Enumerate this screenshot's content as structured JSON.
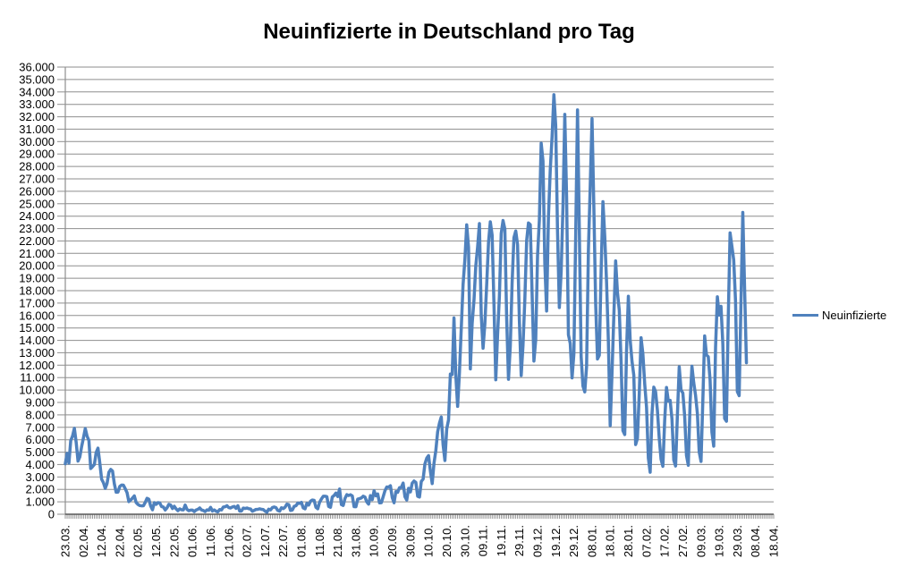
{
  "chart_data": {
    "type": "line",
    "title": "Neuinfizierte in Deutschland pro Tag",
    "legend": {
      "label": "Neuinfizierte",
      "position": "right"
    },
    "grid": "horizontal",
    "colors": {
      "line": "#4F81BD",
      "gridline": "#8E8E8E",
      "axis": "#595959",
      "comb": "#7F7F7F",
      "text": "#000000",
      "background": "#FFFFFF"
    },
    "y_axis": {
      "min": 0,
      "max": 36000,
      "step": 1000,
      "tick_labels": [
        "0",
        "1.000",
        "2.000",
        "3.000",
        "4.000",
        "5.000",
        "6.000",
        "7.000",
        "8.000",
        "9.000",
        "10.000",
        "11.000",
        "12.000",
        "13.000",
        "14.000",
        "15.000",
        "16.000",
        "17.000",
        "18.000",
        "19.000",
        "20.000",
        "21.000",
        "22.000",
        "23.000",
        "24.000",
        "25.000",
        "26.000",
        "27.000",
        "28.000",
        "29.000",
        "30.000",
        "31.000",
        "32.000",
        "33.000",
        "34.000",
        "35.000",
        "36.000"
      ]
    },
    "x_axis": {
      "n_categories": 391,
      "label_every": 10,
      "tick_labels": [
        "23.03.",
        "02.04.",
        "12.04.",
        "22.04.",
        "02.05.",
        "12.05.",
        "22.05.",
        "01.06.",
        "11.06.",
        "21.06.",
        "02.07.",
        "12.07.",
        "22.07.",
        "01.08.",
        "11.08.",
        "21.08.",
        "31.08.",
        "10.09.",
        "20.09.",
        "30.09.",
        "10.10.",
        "20.10.",
        "30.10.",
        "09.11.",
        "19.11.",
        "29.11.",
        "09.12.",
        "19.12.",
        "29.12.",
        "08.01.",
        "18.01.",
        "28.01.",
        "07.02.",
        "17.02.",
        "27.02.",
        "09.03.",
        "19.03.",
        "29.03.",
        "08.04.",
        "18.04."
      ]
    },
    "series": [
      {
        "name": "Neuinfizierte",
        "values": [
          4062,
          4900,
          4118,
          5940,
          6294,
          6922,
          5780,
          4280,
          4615,
          5453,
          6156,
          6900,
          6282,
          5936,
          3677,
          3834,
          4003,
          4974,
          5323,
          4133,
          2821,
          2537,
          2082,
          2486,
          3380,
          3609,
          3481,
          2458,
          1775,
          1785,
          2237,
          2352,
          2337,
          2055,
          1737,
          1018,
          1144,
          1304,
          1478,
          945,
          793,
          697,
          679,
          685,
          947,
          1284,
          1209,
          667,
          357,
          933,
          798,
          933,
          913,
          620,
          583,
          342,
          513,
          797,
          745,
          460,
          638,
          431,
          289,
          432,
          362,
          353,
          741,
          391,
          286,
          333,
          333,
          213,
          342,
          394,
          507,
          348,
          301,
          214,
          350,
          318,
          555,
          258,
          348,
          247,
          192,
          378,
          345,
          580,
          601,
          687,
          537,
          503,
          587,
          630,
          477,
          687,
          256,
          262,
          498,
          466,
          503,
          446,
          422,
          239,
          312,
          390,
          397,
          442,
          395,
          378,
          248,
          159,
          412,
          345,
          534,
          583,
          529,
          305,
          249,
          522,
          454,
          569,
          815,
          781,
          305,
          340,
          633,
          684,
          902,
          870,
          955,
          509,
          436,
          879,
          741,
          1045,
          1147,
          1122,
          555,
          436,
          966,
          1226,
          1445,
          1449,
          1415,
          625,
          561,
          1390,
          1510,
          1707,
          1427,
          2034,
          782,
          711,
          1278,
          1576,
          1507,
          1571,
          1479,
          610,
          601,
          1218,
          1256,
          1311,
          1453,
          1378,
          988,
          814,
          1499,
          1176,
          1892,
          1484,
          1630,
          920,
          927,
          1407,
          1901,
          2194,
          2179,
          2297,
          1345,
          922,
          1821,
          1769,
          2143,
          2153,
          2507,
          1411,
          1144,
          2089,
          1798,
          2503,
          2673,
          2563,
          1450,
          1382,
          2639,
          2828,
          4058,
          4516,
          4721,
          3483,
          2467,
          4122,
          5132,
          6638,
          7334,
          7830,
          5587,
          4325,
          6868,
          7595,
          11287,
          11242,
          15800,
          11176,
          8685,
          11409,
          14964,
          18500,
          20500,
          23300,
          21500,
          11700,
          15352,
          17214,
          19990,
          21506,
          23399,
          16017,
          13363,
          15332,
          18487,
          21866,
          23542,
          22461,
          16947,
          10824,
          14419,
          17561,
          22609,
          23648,
          22964,
          15741,
          10864,
          13554,
          18633,
          22268,
          22806,
          21695,
          15586,
          11169,
          13604,
          17270,
          22046,
          23449,
          23318,
          17767,
          12332,
          14054,
          20815,
          23679,
          29875,
          28438,
          20200,
          16362,
          23928,
          27728,
          30400,
          33777,
          31300,
          22771,
          16643,
          19528,
          24740,
          32195,
          25533,
          14455,
          13755,
          10976,
          12892,
          22459,
          32552,
          22924,
          12690,
          10315,
          9847,
          11897,
          21237,
          26391,
          31849,
          24694,
          16946,
          12497,
          12802,
          19600,
          25164,
          22368,
          18678,
          13882,
          7141,
          11369,
          15974,
          20398,
          17862,
          16417,
          12257,
          6729,
          6412,
          13198,
          17553,
          14022,
          12321,
          11192,
          5608,
          6114,
          9705,
          14211,
          12908,
          10485,
          8616,
          4535,
          3379,
          8072,
          10237,
          9860,
          8354,
          6114,
          4426,
          3856,
          7556,
          10207,
          9113,
          9164,
          7676,
          4369,
          3883,
          8007,
          11869,
          9997,
          9762,
          7890,
          4732,
          3943,
          9019,
          11912,
          10580,
          9557,
          8103,
          5011,
          4252,
          9146,
          14356,
          12834,
          12674,
          10790,
          6604,
          5480,
          13435,
          17504,
          16033,
          16741,
          13733,
          7709,
          7485,
          15813,
          22657,
          21573,
          20472,
          17176,
          9872,
          9549,
          17051,
          24300,
          18129,
          12196
        ]
      }
    ]
  }
}
